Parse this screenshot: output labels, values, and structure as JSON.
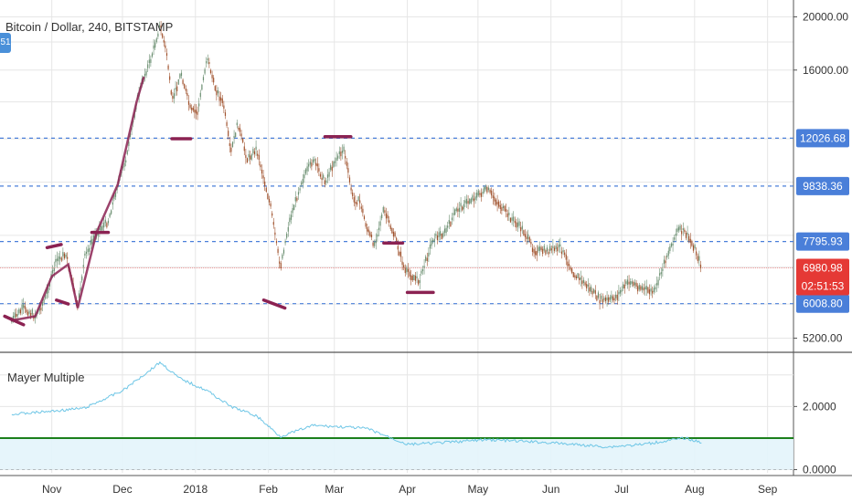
{
  "header": {
    "title": "Bitcoin / Dollar, 240, BITSTAMP",
    "badge": "51"
  },
  "indicator": {
    "title": "Mayer Multiple"
  },
  "colors": {
    "grid": "#e6e6e6",
    "hline": "#4a7fd9",
    "price_line": "#ef9a9a",
    "candle_up": "#6b8f71",
    "candle_down": "#a0522d",
    "drawing": "#8b2252",
    "mm_line": "#6ec6e6",
    "mm_fill": "#e3f4fb",
    "mm_level": "#1b7f1b",
    "price_label": "#e53935",
    "level_label": "#4a7fd9"
  },
  "chart_data": [
    {
      "type": "line",
      "title": "Bitcoin / Dollar, 240, BITSTAMP",
      "xlabel": "",
      "ylabel": "",
      "x_ticks": [
        "Nov",
        "Dec",
        "2018",
        "Feb",
        "Mar",
        "Apr",
        "May",
        "Jun",
        "Jul",
        "Aug",
        "Sep"
      ],
      "y_ticks": [
        5200.0,
        16000.0,
        20000.0
      ],
      "ylim": [
        4900,
        20500
      ],
      "scale": "log",
      "grid": true,
      "current_price": 6980.98,
      "countdown": "02:51:53",
      "horizontal_levels": [
        12026.68,
        9838.36,
        7795.93,
        6008.8
      ],
      "series": [
        {
          "x": [
            "2017-10-15",
            "2017-10-20",
            "2017-10-25",
            "2017-10-29",
            "2017-11-03",
            "2017-11-07",
            "2017-11-10",
            "2017-11-12",
            "2017-11-15",
            "2017-11-20",
            "2017-11-25",
            "2017-11-29",
            "2017-12-03",
            "2017-12-07",
            "2017-12-10",
            "2017-12-13",
            "2017-12-17",
            "2017-12-20",
            "2017-12-22",
            "2017-12-26",
            "2017-12-30",
            "2018-01-02",
            "2018-01-06",
            "2018-01-09",
            "2018-01-13",
            "2018-01-16",
            "2018-01-19",
            "2018-01-23",
            "2018-01-27",
            "2018-02-02",
            "2018-02-06",
            "2018-02-10",
            "2018-02-15",
            "2018-02-20",
            "2018-02-25",
            "2018-03-01",
            "2018-03-05",
            "2018-03-09",
            "2018-03-12",
            "2018-03-15",
            "2018-03-18",
            "2018-03-22",
            "2018-03-27",
            "2018-03-31",
            "2018-04-06",
            "2018-04-12",
            "2018-04-17",
            "2018-04-22",
            "2018-04-28",
            "2018-05-05",
            "2018-05-10",
            "2018-05-15",
            "2018-05-20",
            "2018-05-25",
            "2018-05-31",
            "2018-06-05",
            "2018-06-11",
            "2018-06-16",
            "2018-06-22",
            "2018-06-26",
            "2018-06-29",
            "2018-07-04",
            "2018-07-10",
            "2018-07-15",
            "2018-07-20",
            "2018-07-25",
            "2018-07-28",
            "2018-08-01",
            "2018-08-04"
          ],
          "values": [
            5600,
            5900,
            5700,
            6100,
            7200,
            7400,
            6500,
            5900,
            7300,
            8100,
            8500,
            9900,
            11200,
            14000,
            15500,
            16700,
            19300,
            17000,
            14000,
            15800,
            13500,
            13400,
            17000,
            15000,
            13800,
            11300,
            12800,
            11000,
            11500,
            9000,
            7000,
            8500,
            10000,
            11000,
            10000,
            10900,
            11500,
            9300,
            9200,
            8200,
            7700,
            8900,
            7900,
            6900,
            6600,
            7900,
            8100,
            8900,
            9300,
            9700,
            9100,
            8600,
            8200,
            7500,
            7500,
            7600,
            6800,
            6500,
            6100,
            6100,
            6200,
            6600,
            6400,
            6300,
            7300,
            8200,
            8100,
            7600,
            7000
          ]
        }
      ]
    },
    {
      "type": "area",
      "title": "Mayer Multiple",
      "xlabel": "",
      "ylabel": "",
      "y_ticks": [
        2.0,
        0.0
      ],
      "ylim": [
        -0.1,
        3.6
      ],
      "grid": true,
      "reference_level": 1.0,
      "series": [
        {
          "x": [
            "2017-10-15",
            "2017-11-01",
            "2017-11-15",
            "2017-12-01",
            "2017-12-10",
            "2017-12-17",
            "2017-12-25",
            "2018-01-06",
            "2018-01-16",
            "2018-01-27",
            "2018-02-06",
            "2018-02-20",
            "2018-03-05",
            "2018-03-15",
            "2018-04-01",
            "2018-04-15",
            "2018-05-05",
            "2018-06-01",
            "2018-06-25",
            "2018-07-10",
            "2018-07-28",
            "2018-08-04"
          ],
          "values": [
            1.75,
            1.85,
            1.95,
            2.5,
            3.0,
            3.4,
            2.9,
            2.5,
            2.0,
            1.7,
            1.05,
            1.4,
            1.35,
            1.3,
            0.8,
            0.85,
            0.95,
            0.85,
            0.72,
            0.8,
            1.0,
            0.85
          ]
        }
      ]
    }
  ]
}
